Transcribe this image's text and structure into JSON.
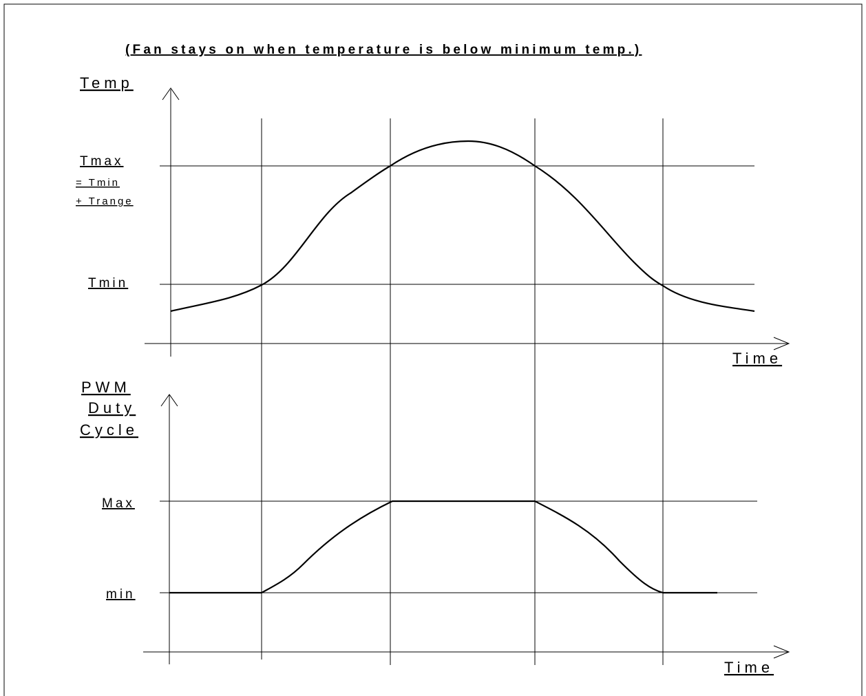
{
  "title": "(Fan stays on when temperature is below minimum temp.)",
  "top_plot": {
    "y_axis_label": "Temp",
    "x_axis_label": "Time",
    "tmax_label": "Tmax",
    "tmax_eq_line1": "= Tmin",
    "tmax_eq_line2": "+ Trange",
    "tmin_label": "Tmin"
  },
  "bottom_plot": {
    "y_axis_label_line1": "PWM",
    "y_axis_label_line2": "Duty",
    "y_axis_label_line3": "Cycle",
    "x_axis_label": "Time",
    "max_label": "Max",
    "min_label": "min"
  },
  "colors": {
    "line": "#000000",
    "background": "#ffffff"
  }
}
